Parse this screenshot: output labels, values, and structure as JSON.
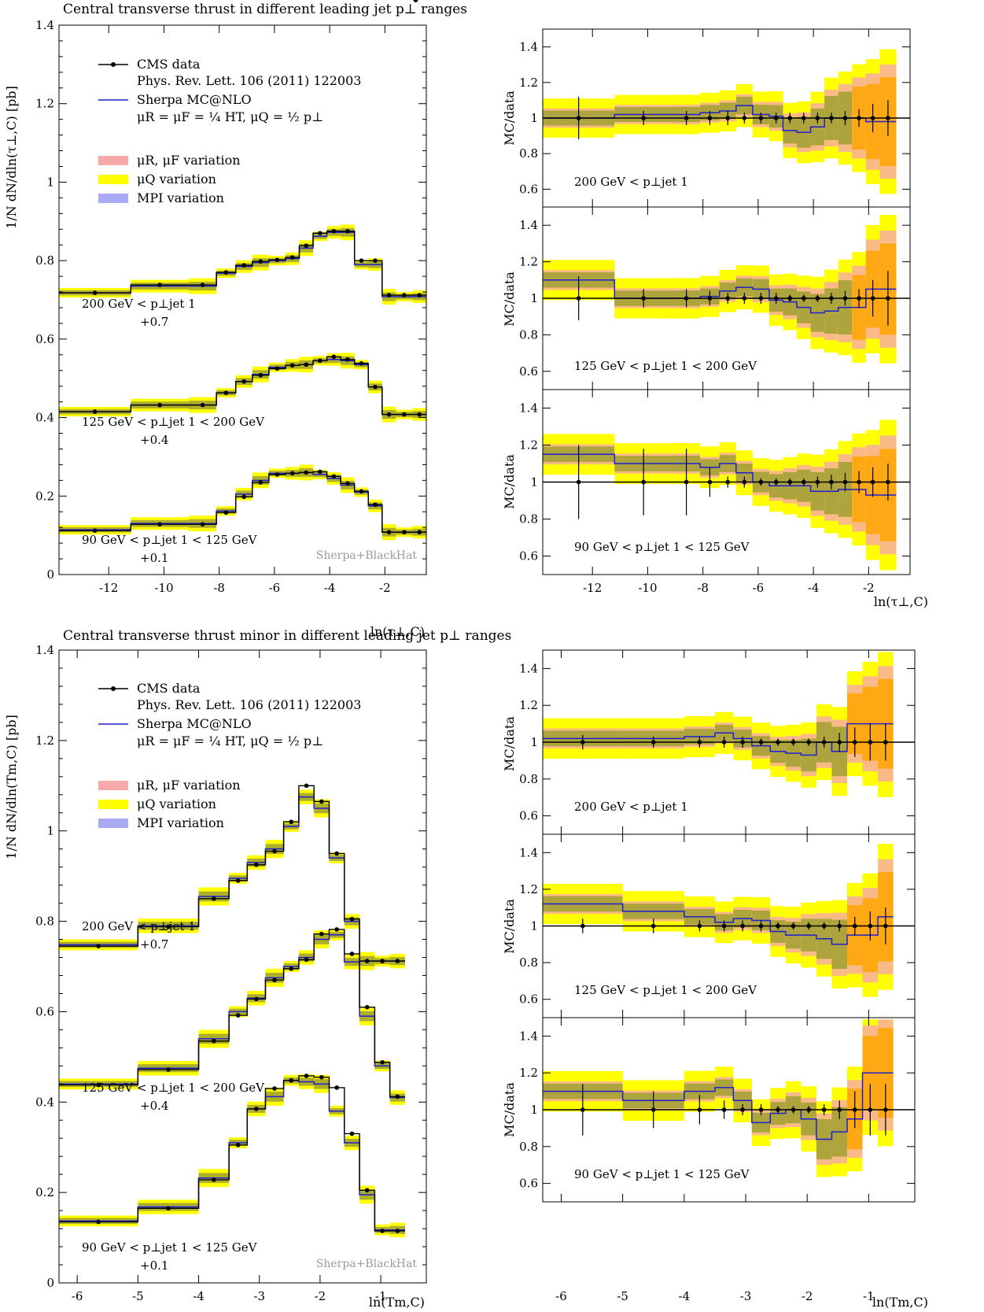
{
  "colors": {
    "data": "#000000",
    "mc": "#1f1fd0",
    "scale_band": "#f7a9a9",
    "q_band": "#ffff00",
    "mpi_band": "#a9a9f5",
    "overlap_scale_q": "#ffa500",
    "overlap_scale_mpi": "#9060b0",
    "overlap_q_mpi": "#a0a030"
  },
  "legend": {
    "data_label": "CMS data",
    "data_ref": "Phys. Rev. Lett. 106 (2011) 122003",
    "mc_label": "Sherpa MC@NLO",
    "mc_scales": "μR = μF = ¼ HT,  μQ = ½ p⊥",
    "band_scale": "μR, μF variation",
    "band_q": "μQ variation",
    "band_mpi": "MPI variation"
  },
  "credit": "Sherpa+BlackHat",
  "ratio_ylabel": "MC/data",
  "chart_data": [
    {
      "id": "tau",
      "type": "line",
      "title": "Central transverse thrust in different leading jet p⊥ ranges",
      "ylabel": "1/N dN/dln(τ⊥,C) [pb]",
      "xlabel": "ln(τ⊥,C)",
      "xlim": [
        -13.8,
        -0.5
      ],
      "ylim": [
        0,
        1.4
      ],
      "xticks": [
        "-12",
        "-10",
        "-8",
        "-6",
        "-4",
        "-2"
      ],
      "xtick_values": [
        -12,
        -10,
        -8,
        -6,
        -4,
        -2
      ],
      "yticks": [
        "0",
        "0.2",
        "0.4",
        "0.6",
        "0.8",
        "1",
        "1.2",
        "1.4"
      ],
      "ytick_values": [
        0,
        0.2,
        0.4,
        0.6,
        0.8,
        1.0,
        1.2,
        1.4
      ],
      "bin_edges": [
        -13.8,
        -11.2,
        -9.1,
        -8.1,
        -7.4,
        -6.8,
        -6.2,
        -5.6,
        -5.1,
        -4.6,
        -4.1,
        -3.6,
        -3.1,
        -2.6,
        -2.1,
        -1.6,
        -1.0,
        -0.5
      ],
      "ratio_ylim": [
        0.5,
        1.5
      ],
      "ratio_yticks": [
        "0.6",
        "0.8",
        "1",
        "1.2",
        "1.4"
      ],
      "ratio_ytick_values": [
        0.6,
        0.8,
        1.0,
        1.2,
        1.4
      ],
      "series": [
        {
          "name": "200 GeV < p⊥jet 1",
          "offset_label": "+0.7",
          "data": [
            0.718,
            0.738,
            0.738,
            0.77,
            0.788,
            0.798,
            0.802,
            0.808,
            0.838,
            0.87,
            0.875,
            0.875,
            0.8,
            0.8,
            0.712,
            0.712,
            0.712
          ],
          "mc": [
            0.718,
            0.735,
            0.735,
            0.768,
            0.785,
            0.795,
            0.8,
            0.805,
            0.832,
            0.862,
            0.872,
            0.872,
            0.79,
            0.79,
            0.708,
            0.708,
            0.708
          ],
          "ratio": [
            1.0,
            1.02,
            1.02,
            1.03,
            1.04,
            1.07,
            1.02,
            1.01,
            0.93,
            0.92,
            0.95,
            1.0,
            1.0,
            1.0,
            0.98,
            0.98
          ],
          "ratio_data_err": [
            0.12,
            0.04,
            0.04,
            0.04,
            0.04,
            0.03,
            0.03,
            0.03,
            0.03,
            0.03,
            0.03,
            0.03,
            0.04,
            0.05,
            0.08,
            0.1
          ]
        },
        {
          "name": "125 GeV < p⊥jet 1 < 200 GeV",
          "offset_label": "+0.4",
          "data": [
            0.415,
            0.432,
            0.432,
            0.463,
            0.492,
            0.508,
            0.525,
            0.533,
            0.535,
            0.545,
            0.555,
            0.548,
            0.538,
            0.478,
            0.408,
            0.408,
            0.408
          ],
          "mc": [
            0.415,
            0.432,
            0.432,
            0.463,
            0.492,
            0.51,
            0.528,
            0.533,
            0.535,
            0.545,
            0.548,
            0.545,
            0.535,
            0.478,
            0.408,
            0.408,
            0.408
          ],
          "ratio": [
            1.1,
            1.0,
            1.0,
            1.01,
            1.04,
            1.06,
            1.05,
            0.99,
            0.98,
            0.95,
            0.92,
            0.93,
            0.95,
            0.95,
            1.05,
            1.05
          ],
          "ratio_data_err": [
            0.12,
            0.05,
            0.05,
            0.04,
            0.03,
            0.03,
            0.03,
            0.03,
            0.02,
            0.02,
            0.02,
            0.03,
            0.04,
            0.05,
            0.1,
            0.15
          ]
        },
        {
          "name": "90 GeV < p⊥jet 1 < 125 GeV",
          "offset_label": "+0.1",
          "data": [
            0.112,
            0.128,
            0.128,
            0.158,
            0.198,
            0.235,
            0.255,
            0.258,
            0.26,
            0.262,
            0.25,
            0.232,
            0.212,
            0.178,
            0.108,
            0.108,
            0.108
          ],
          "mc": [
            0.114,
            0.13,
            0.13,
            0.162,
            0.205,
            0.24,
            0.258,
            0.258,
            0.26,
            0.255,
            0.245,
            0.228,
            0.21,
            0.175,
            0.108,
            0.108,
            0.108
          ],
          "ratio": [
            1.15,
            1.1,
            1.1,
            1.08,
            1.1,
            1.05,
            1.0,
            0.98,
            0.98,
            0.98,
            0.95,
            0.95,
            0.96,
            0.96,
            0.93,
            0.93
          ],
          "ratio_data_err": [
            0.2,
            0.18,
            0.18,
            0.08,
            0.03,
            0.03,
            0.02,
            0.02,
            0.02,
            0.02,
            0.03,
            0.04,
            0.05,
            0.06,
            0.08,
            0.1
          ]
        }
      ]
    },
    {
      "id": "tmin",
      "type": "line",
      "title": "Central transverse thrust minor in different leading jet p⊥ ranges",
      "ylabel": "1/N dN/dln(Tm,C) [pb]",
      "xlabel": "ln(Tm,C)",
      "xlim": [
        -6.3,
        -0.25
      ],
      "ylim": [
        0,
        1.4
      ],
      "xticks": [
        "-6",
        "-5",
        "-4",
        "-3",
        "-2",
        "-1"
      ],
      "xtick_values": [
        -6,
        -5,
        -4,
        -3,
        -2,
        -1
      ],
      "yticks": [
        "0",
        "0.2",
        "0.4",
        "0.6",
        "0.8",
        "1",
        "1.2",
        "1.4"
      ],
      "ytick_values": [
        0,
        0.2,
        0.4,
        0.6,
        0.8,
        1.0,
        1.2,
        1.4
      ],
      "bin_edges": [
        -6.3,
        -5.0,
        -4.0,
        -3.5,
        -3.2,
        -2.9,
        -2.6,
        -2.35,
        -2.1,
        -1.85,
        -1.6,
        -1.35,
        -1.1,
        -0.85,
        -0.6,
        -0.25
      ],
      "ratio_ylim": [
        0.5,
        1.5
      ],
      "ratio_yticks": [
        "0.6",
        "0.8",
        "1",
        "1.2",
        "1.4"
      ],
      "ratio_ytick_values": [
        0.6,
        0.8,
        1.0,
        1.2,
        1.4
      ],
      "series": [
        {
          "name": "200 GeV < p⊥jet 1",
          "offset_label": "+0.7",
          "data": [
            0.745,
            0.788,
            0.85,
            0.89,
            0.925,
            0.955,
            1.02,
            1.1,
            1.065,
            0.95,
            0.805,
            0.712,
            0.712,
            0.712
          ],
          "mc": [
            0.748,
            0.79,
            0.855,
            0.895,
            0.93,
            0.96,
            1.01,
            1.075,
            1.05,
            0.94,
            0.8,
            0.712,
            0.712,
            0.712
          ],
          "ratio": [
            1.02,
            1.02,
            1.03,
            1.05,
            1.02,
            0.98,
            0.95,
            0.94,
            0.93,
            1.0,
            0.95,
            1.1,
            1.1,
            1.1
          ],
          "ratio_data_err": [
            0.04,
            0.03,
            0.03,
            0.03,
            0.03,
            0.02,
            0.02,
            0.02,
            0.02,
            0.03,
            0.05,
            0.08,
            0.1,
            0.1
          ]
        },
        {
          "name": "125 GeV < p⊥jet 1 < 200 GeV",
          "offset_label": "+0.4",
          "data": [
            0.438,
            0.472,
            0.535,
            0.592,
            0.628,
            0.67,
            0.695,
            0.715,
            0.772,
            0.782,
            0.728,
            0.61,
            0.488,
            0.412
          ],
          "mc": [
            0.44,
            0.475,
            0.54,
            0.6,
            0.63,
            0.675,
            0.7,
            0.72,
            0.76,
            0.77,
            0.71,
            0.59,
            0.48,
            0.41
          ],
          "ratio": [
            1.12,
            1.08,
            1.05,
            1.02,
            1.04,
            1.03,
            0.97,
            0.95,
            0.95,
            0.93,
            0.9,
            0.95,
            0.95,
            1.05
          ],
          "ratio_data_err": [
            0.04,
            0.04,
            0.03,
            0.03,
            0.03,
            0.03,
            0.02,
            0.02,
            0.02,
            0.02,
            0.03,
            0.05,
            0.08,
            0.1
          ]
        },
        {
          "name": "90 GeV < p⊥jet 1 < 125 GeV",
          "offset_label": "+0.1",
          "data": [
            0.135,
            0.165,
            0.228,
            0.305,
            0.385,
            0.43,
            0.448,
            0.458,
            0.455,
            0.432,
            0.33,
            0.205,
            0.115,
            0.115
          ],
          "mc": [
            0.137,
            0.168,
            0.232,
            0.31,
            0.385,
            0.412,
            0.448,
            0.445,
            0.44,
            0.38,
            0.31,
            0.195,
            0.117,
            0.117
          ],
          "ratio": [
            1.1,
            1.05,
            1.1,
            1.12,
            1.05,
            0.93,
            0.98,
            1.0,
            0.95,
            0.84,
            0.88,
            0.95,
            1.2,
            1.2
          ],
          "ratio_data_err": [
            0.14,
            0.1,
            0.08,
            0.05,
            0.03,
            0.03,
            0.02,
            0.02,
            0.02,
            0.03,
            0.05,
            0.1,
            0.14,
            0.14
          ]
        }
      ]
    }
  ]
}
